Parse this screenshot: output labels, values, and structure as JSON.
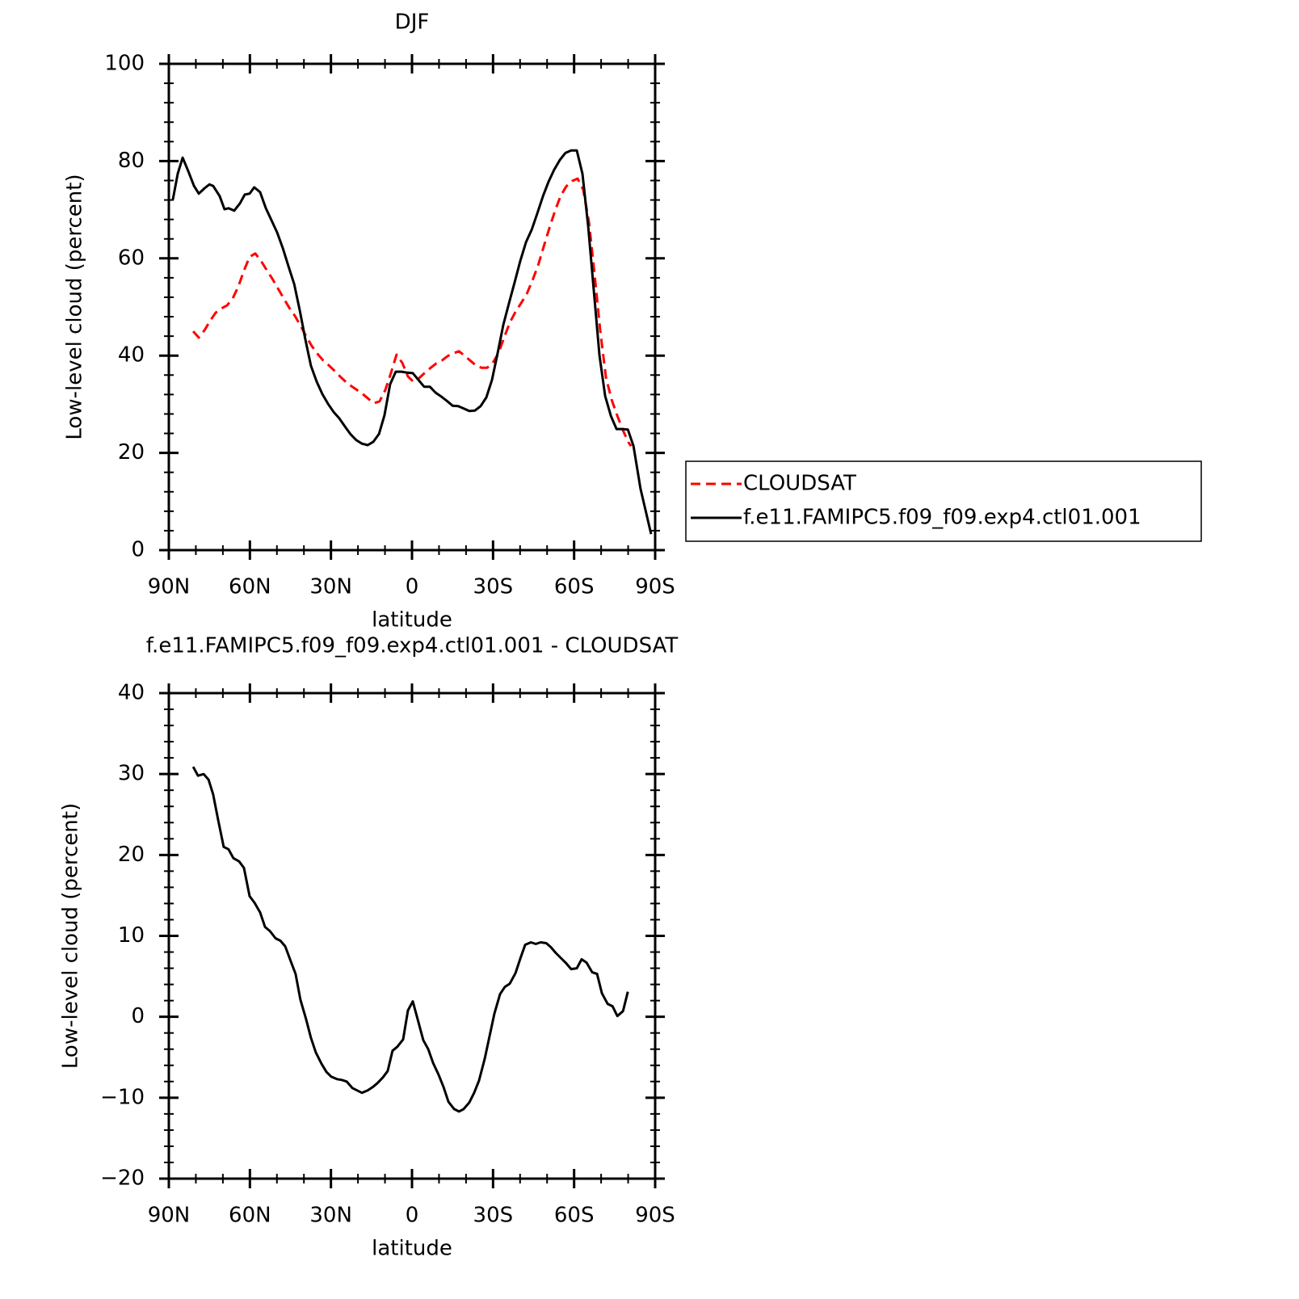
{
  "chart_data": [
    {
      "type": "line",
      "title": "DJF",
      "x_label": "latitude",
      "y_label": "Low-level cloud (percent)",
      "xlim": [
        90,
        -90
      ],
      "xticks": [
        {
          "value": 90,
          "label": "90N"
        },
        {
          "value": 60,
          "label": "60N"
        },
        {
          "value": 30,
          "label": "30N"
        },
        0,
        {
          "value": -30,
          "label": "30S"
        },
        {
          "value": -60,
          "label": "60S"
        },
        {
          "value": -90,
          "label": "90S"
        }
      ],
      "xminorticks": [
        80,
        70,
        50,
        40,
        20,
        10,
        -10,
        -20,
        -40,
        -50,
        -70,
        -80
      ],
      "ylim": [
        0,
        100
      ],
      "yticks": [
        0,
        20,
        40,
        60,
        80,
        100
      ],
      "yminorticks": [
        4,
        8,
        12,
        16,
        24,
        28,
        32,
        36,
        44,
        48,
        52,
        56,
        64,
        68,
        72,
        76,
        84,
        88,
        92,
        96
      ],
      "legend": "right",
      "series": [
        {
          "name": "CLOUDSAT",
          "color": "#ff0000",
          "line_style": "dashed",
          "x": [
            81.0,
            78.9,
            76.8,
            74.7,
            72.7,
            70.6,
            68.5,
            66.4,
            64.3,
            62.2,
            60.1,
            58.0,
            55.9,
            53.8,
            51.7,
            49.6,
            47.5,
            45.4,
            43.4,
            41.3,
            39.2,
            37.1,
            35.0,
            32.9,
            30.8,
            28.7,
            26.6,
            24.5,
            22.4,
            20.3,
            18.2,
            16.1,
            14.1,
            12.0,
            9.9,
            7.8,
            5.7,
            3.6,
            1.5,
            -0.6,
            -2.7,
            -4.8,
            -6.9,
            -9.0,
            -11.1,
            -13.2,
            -15.3,
            -17.4,
            -19.4,
            -21.5,
            -23.6,
            -25.7,
            -27.8,
            -29.9,
            -32.0,
            -34.1,
            -36.2,
            -38.3,
            -40.4,
            -42.5,
            -44.6,
            -46.7,
            -48.8,
            -50.9,
            -53.0,
            -55.0,
            -57.1,
            -59.2,
            -61.3,
            -63.4,
            -65.5,
            -67.6,
            -69.7,
            -71.8,
            -73.9,
            -76.0,
            -78.1,
            -80.2,
            -81.1
          ],
          "values": [
            45.0,
            43.7,
            45.2,
            47.2,
            48.8,
            49.7,
            50.3,
            51.7,
            54.2,
            57.5,
            60.3,
            61.0,
            59.5,
            57.6,
            55.8,
            53.8,
            51.8,
            49.8,
            48.2,
            46.2,
            44.0,
            42.0,
            40.4,
            39.0,
            38.0,
            36.9,
            35.7,
            34.6,
            33.7,
            32.9,
            32.1,
            31.1,
            30.2,
            30.6,
            32.9,
            36.4,
            40.2,
            38.5,
            35.7,
            34.6,
            35.4,
            36.5,
            37.5,
            38.4,
            39.0,
            39.9,
            40.5,
            40.9,
            40.0,
            39.0,
            38.0,
            37.5,
            37.5,
            38.5,
            40.5,
            43.7,
            46.8,
            49.0,
            50.8,
            52.7,
            55.5,
            58.6,
            62.5,
            66.3,
            69.9,
            72.8,
            74.8,
            75.9,
            76.4,
            74.1,
            67.4,
            56.6,
            45.0,
            35.5,
            30.9,
            27.6,
            24.6,
            22.1,
            21.4
          ]
        },
        {
          "name": "f.e11.FAMIPC5.f09_f09.exp4.ctl01.001",
          "color": "#000000",
          "line_style": "solid",
          "x": [
            88.5,
            86.7,
            84.9,
            82.8,
            80.7,
            78.9,
            76.8,
            75.0,
            73.6,
            71.2,
            69.4,
            67.9,
            65.8,
            63.7,
            61.9,
            60.1,
            58.4,
            56.2,
            54.1,
            52.0,
            49.9,
            47.8,
            45.7,
            43.6,
            41.5,
            39.5,
            37.4,
            35.3,
            33.2,
            31.1,
            29.0,
            26.9,
            24.8,
            22.7,
            20.6,
            18.5,
            16.4,
            14.3,
            12.2,
            10.2,
            8.1,
            6.0,
            3.9,
            1.8,
            -0.3,
            -2.4,
            -4.5,
            -6.6,
            -8.7,
            -10.8,
            -12.9,
            -15.0,
            -17.1,
            -19.2,
            -21.2,
            -23.3,
            -25.4,
            -27.5,
            -29.6,
            -31.7,
            -33.8,
            -35.9,
            -38.0,
            -40.1,
            -42.2,
            -44.3,
            -46.4,
            -48.5,
            -50.5,
            -52.6,
            -54.7,
            -56.8,
            -58.9,
            -61.0,
            -63.1,
            -65.2,
            -67.3,
            -69.4,
            -71.5,
            -73.6,
            -75.7,
            -77.8,
            -79.9,
            -82.0,
            -84.6,
            -88.5
          ],
          "values": [
            72.1,
            77.4,
            80.7,
            77.9,
            74.9,
            73.3,
            74.4,
            75.2,
            74.9,
            72.8,
            70.1,
            70.3,
            69.8,
            71.3,
            73.1,
            73.3,
            74.6,
            73.6,
            70.3,
            67.8,
            65.3,
            62.1,
            58.3,
            54.7,
            49.2,
            43.4,
            37.9,
            34.7,
            32.1,
            30.1,
            28.4,
            27.1,
            25.4,
            23.8,
            22.6,
            21.9,
            21.6,
            22.3,
            23.9,
            27.7,
            34.1,
            36.7,
            36.7,
            36.5,
            36.4,
            35.0,
            33.6,
            33.6,
            32.4,
            31.6,
            30.7,
            29.7,
            29.6,
            29.1,
            28.6,
            28.7,
            29.6,
            31.4,
            35.0,
            40.5,
            46.3,
            50.8,
            55.1,
            59.5,
            63.3,
            65.9,
            69.3,
            72.8,
            75.7,
            78.2,
            80.2,
            81.7,
            82.2,
            82.2,
            77.4,
            66.6,
            53.3,
            40.0,
            31.7,
            27.6,
            24.9,
            24.9,
            24.8,
            21.4,
            12.6,
            3.3
          ]
        }
      ]
    },
    {
      "type": "line",
      "title": "f.e11.FAMIPC5.f09_f09.exp4.ctl01.001 - CLOUDSAT",
      "x_label": "latitude",
      "y_label": "Low-level cloud (percent)",
      "xlim": [
        90,
        -90
      ],
      "xticks": [
        {
          "value": 90,
          "label": "90N"
        },
        {
          "value": 60,
          "label": "60N"
        },
        {
          "value": 30,
          "label": "30N"
        },
        0,
        {
          "value": -30,
          "label": "30S"
        },
        {
          "value": -60,
          "label": "60S"
        },
        {
          "value": -90,
          "label": "90S"
        }
      ],
      "xminorticks": [
        80,
        70,
        50,
        40,
        20,
        10,
        -10,
        -20,
        -40,
        -50,
        -70,
        -80
      ],
      "ylim": [
        -20,
        40
      ],
      "yticks": [
        {
          "value": -20,
          "label": "−20"
        },
        {
          "value": -10,
          "label": "−10"
        },
        0,
        10,
        20,
        30,
        40
      ],
      "yminorticks": [
        -18,
        -16,
        -14,
        -12,
        -8,
        -6,
        -4,
        -2,
        2,
        4,
        6,
        8,
        12,
        14,
        16,
        18,
        22,
        24,
        26,
        28,
        32,
        34,
        36,
        38
      ],
      "color": "#000000",
      "x": [
        81.0,
        79.2,
        77.1,
        75.3,
        73.6,
        71.8,
        69.7,
        67.9,
        66.1,
        64.0,
        62.2,
        60.1,
        58.3,
        56.2,
        54.4,
        52.6,
        50.5,
        48.7,
        46.9,
        44.8,
        43.1,
        41.3,
        39.2,
        37.4,
        35.6,
        33.5,
        31.7,
        29.9,
        27.8,
        26.0,
        24.2,
        22.1,
        20.3,
        18.5,
        16.4,
        14.6,
        12.8,
        10.8,
        9.0,
        7.2,
        5.4,
        3.3,
        1.5,
        -0.3,
        -2.1,
        -4.2,
        -6.0,
        -7.8,
        -9.9,
        -11.7,
        -13.5,
        -15.6,
        -17.4,
        -19.1,
        -21.2,
        -23.0,
        -24.8,
        -26.9,
        -28.7,
        -30.5,
        -32.6,
        -34.4,
        -36.2,
        -38.3,
        -40.1,
        -41.9,
        -44.0,
        -45.8,
        -47.6,
        -49.7,
        -51.4,
        -53.2,
        -55.3,
        -57.1,
        -58.9,
        -61.0,
        -62.8,
        -64.6,
        -66.7,
        -68.5,
        -70.3,
        -72.4,
        -74.2,
        -76.0,
        -78.1,
        -79.9
      ],
      "values": [
        30.9,
        29.8,
        30.0,
        29.3,
        27.5,
        24.4,
        21.0,
        20.7,
        19.6,
        19.2,
        18.4,
        14.9,
        14.1,
        12.9,
        11.1,
        10.6,
        9.7,
        9.4,
        8.7,
        6.8,
        5.3,
        2.1,
        -0.3,
        -2.6,
        -4.4,
        -5.8,
        -6.8,
        -7.4,
        -7.7,
        -7.8,
        -8.0,
        -8.8,
        -9.1,
        -9.4,
        -9.1,
        -8.7,
        -8.2,
        -7.5,
        -6.7,
        -4.2,
        -3.7,
        -2.8,
        0.8,
        1.9,
        -0.3,
        -2.9,
        -4.0,
        -5.7,
        -7.2,
        -8.7,
        -10.5,
        -11.4,
        -11.7,
        -11.4,
        -10.6,
        -9.4,
        -7.9,
        -5.2,
        -2.4,
        0.4,
        2.8,
        3.7,
        4.1,
        5.4,
        7.2,
        8.9,
        9.2,
        9.0,
        9.2,
        9.1,
        8.6,
        7.9,
        7.2,
        6.6,
        5.9,
        6.0,
        7.1,
        6.7,
        5.5,
        5.3,
        2.9,
        1.6,
        1.3,
        0.1,
        0.7,
        3.1
      ]
    }
  ]
}
